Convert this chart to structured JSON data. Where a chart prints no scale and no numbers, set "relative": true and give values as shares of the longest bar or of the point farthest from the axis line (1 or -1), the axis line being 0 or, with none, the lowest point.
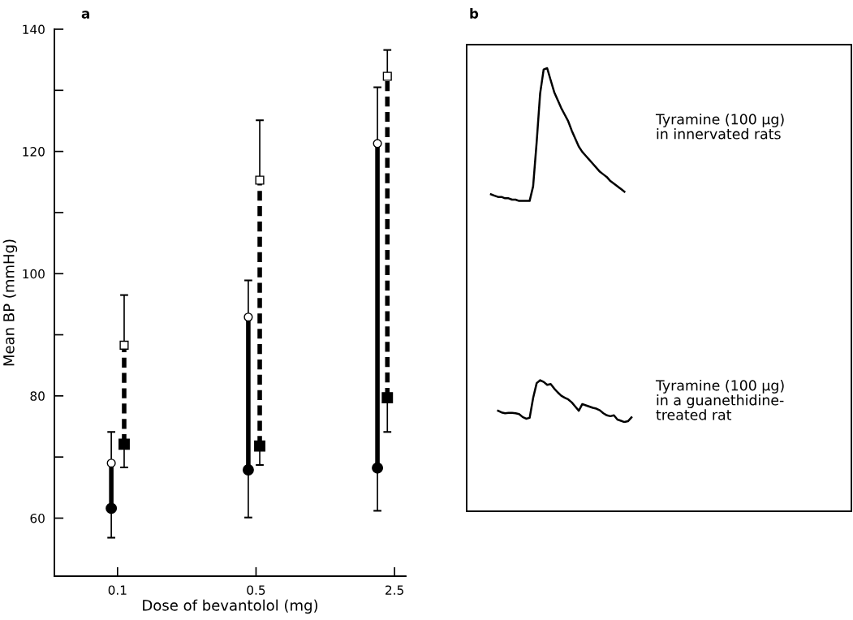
{
  "chart_data": [
    {
      "type": "scatter",
      "title": "a",
      "xlabel": "Dose of bevantolol (mg)",
      "ylabel": "Mean BP (mmHg)",
      "log": "x",
      "xlim": [
        0.048,
        2.85
      ],
      "xticks": [
        0.1,
        0.5,
        2.5
      ],
      "ylim": [
        50.5,
        140
      ],
      "yticks": [
        60,
        {
          "value": 70,
          "label": null
        },
        80,
        {
          "value": 90,
          "label": null
        },
        100,
        {
          "value": 110,
          "label": null
        },
        120,
        {
          "value": 130,
          "label": null
        },
        140
      ],
      "series": [
        {
          "type": "line",
          "color": "#000000",
          "line_style": "solid",
          "marker": "none",
          "x": [
            0.093,
            0.093
          ],
          "values": [
            61.6,
            69.0
          ]
        },
        {
          "type": "line",
          "color": "#000000",
          "line_style": "solid",
          "marker": "none",
          "x": [
            0.457,
            0.457
          ],
          "values": [
            67.9,
            92.9
          ]
        },
        {
          "type": "line",
          "color": "#000000",
          "line_style": "solid",
          "marker": "none",
          "x": [
            2.05,
            2.05
          ],
          "values": [
            68.2,
            121.3
          ]
        },
        {
          "type": "line",
          "color": "#000000",
          "line_style": "dashed",
          "marker": "none",
          "x": [
            0.108,
            0.108
          ],
          "values": [
            72.1,
            88.3
          ]
        },
        {
          "type": "line",
          "color": "#000000",
          "line_style": "dashed",
          "marker": "none",
          "x": [
            0.522,
            0.522
          ],
          "values": [
            71.8,
            115.3
          ]
        },
        {
          "type": "line",
          "color": "#000000",
          "line_style": "dashed",
          "marker": "none",
          "x": [
            2.3,
            2.3
          ],
          "values": [
            79.7,
            132.3
          ]
        },
        {
          "color": "#000000",
          "marker": "circle",
          "x": [
            0.093,
            0.457,
            2.05
          ],
          "values": [
            61.6,
            67.9,
            68.2
          ],
          "errors": [
            [
              56.8,
              61.6
            ],
            [
              60.1,
              67.9
            ],
            [
              61.2,
              68.2
            ]
          ]
        },
        {
          "color": "#ffffff",
          "marker": "circle",
          "x": [
            0.093,
            0.457,
            2.05
          ],
          "values": [
            69.0,
            92.9,
            121.3
          ],
          "errors": [
            [
              69.0,
              74.1
            ],
            [
              92.9,
              98.9
            ],
            [
              121.3,
              130.5
            ]
          ]
        },
        {
          "color": "#000000",
          "marker": "square",
          "x": [
            0.108,
            0.522,
            2.3
          ],
          "values": [
            72.1,
            71.8,
            79.7
          ],
          "errors": [
            [
              68.3,
              72.1
            ],
            [
              68.7,
              71.8
            ],
            [
              74.1,
              79.7
            ]
          ]
        },
        {
          "color": "#ffffff",
          "marker": "square",
          "x": [
            0.108,
            0.522,
            2.3
          ],
          "values": [
            88.3,
            115.3,
            132.3
          ],
          "errors": [
            [
              88.3,
              96.5
            ],
            [
              115.3,
              125.1
            ],
            [
              132.3,
              136.6
            ]
          ]
        }
      ]
    },
    {
      "type": "line",
      "title": "b",
      "relative": true,
      "categories": [
        null,
        null,
        null,
        null,
        null,
        null,
        null,
        null,
        null,
        null,
        null,
        null,
        null,
        null,
        null,
        null,
        null,
        null,
        null,
        null,
        null,
        null,
        null,
        null,
        null,
        null,
        null,
        null,
        null,
        null,
        null,
        null,
        null,
        null,
        null,
        null,
        null,
        null,
        null
      ],
      "annotations": [
        "Tyramine (100 μg)\nin innervated rats"
      ],
      "series": [
        {
          "color": "#000000",
          "values": [
            0.05,
            0.04,
            0.03,
            0.03,
            0.02,
            0.02,
            0.01,
            0.01,
            0,
            0,
            0,
            0,
            0.11,
            0.44,
            0.81,
            0.99,
            1,
            0.91,
            0.82,
            0.76,
            0.7,
            0.65,
            0.6,
            0.53,
            0.47,
            0.41,
            0.37,
            0.34,
            0.31,
            0.28,
            0.25,
            0.22,
            0.2,
            0.18,
            0.15,
            0.13,
            0.11,
            0.09,
            0.07
          ]
        }
      ]
    },
    {
      "type": "line",
      "relative": true,
      "categories": [
        null,
        null,
        null,
        null,
        null,
        null,
        null,
        null,
        null,
        null,
        null,
        null,
        null,
        null,
        null,
        null,
        null,
        null,
        null,
        null,
        null,
        null,
        null,
        null,
        null,
        null,
        null,
        null,
        null,
        null,
        null,
        null,
        null,
        null,
        null,
        null,
        null,
        null,
        null
      ],
      "annotations": [
        "Tyramine (100 μg)\nin a guanethidine-\ntreated rat"
      ],
      "series": [
        {
          "color": "#000000",
          "values": [
            0.27,
            0.23,
            0.21,
            0.22,
            0.22,
            0.21,
            0.19,
            0.12,
            0.08,
            0.1,
            0.58,
            0.93,
            1,
            0.96,
            0.89,
            0.91,
            0.8,
            0.71,
            0.63,
            0.58,
            0.54,
            0.47,
            0.37,
            0.27,
            0.43,
            0.4,
            0.37,
            0.34,
            0.32,
            0.28,
            0.21,
            0.16,
            0.14,
            0.16,
            0.06,
            0.03,
            0,
            0.02,
            0.11
          ]
        }
      ]
    }
  ]
}
